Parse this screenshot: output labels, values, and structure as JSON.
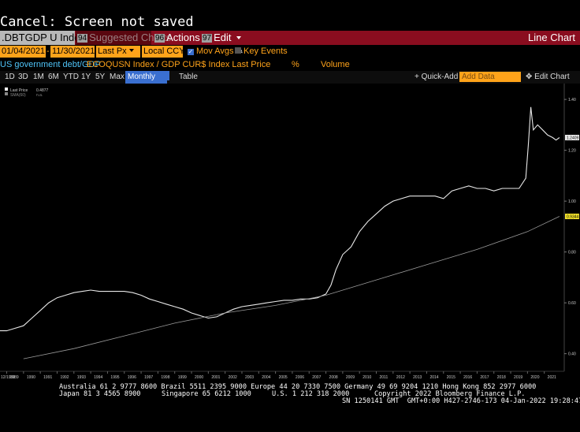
{
  "status": "Cancel: Screen not saved",
  "toolbar": {
    "ticker": ".DBTGDP U Index",
    "suggested": "Suggested Charts",
    "suggested_num": "94",
    "actions_num": "96",
    "actions": "Actions",
    "edit_num": "97",
    "edit": "Edit",
    "chart_type": "Line Chart"
  },
  "controls": {
    "start_date": "01/04/2021",
    "end_date": "11/30/2021",
    "price_field": "Last Px",
    "currency": "Local CCY",
    "mov_avgs": "Mov Avgs",
    "key_events": "Key Events"
  },
  "series_bar": {
    "name": "US government debt/GDP",
    "formula": "ECOQUSN Index / GDP CUR$ Index Last Price",
    "pct": "%",
    "volume": "Volume"
  },
  "tabs": {
    "d1": "1D",
    "d3": "3D",
    "m1": "1M",
    "m6": "6M",
    "ytd": "YTD",
    "y1": "1Y",
    "y5": "5Y",
    "max": "Max",
    "monthly": "Monthly",
    "table": "Table",
    "quick_add": "Quick-Add",
    "add_data": "Add Data",
    "edit_chart": "Edit Chart"
  },
  "legend": {
    "last_price_label": "Last Price",
    "last_price_value": "0.4877",
    "sma_label": "SMA(60)",
    "sma_value": "n.a."
  },
  "colors": {
    "toolbar_red": "#8a0d1f",
    "orange": "#ffa31a",
    "accent_blue": "#3a6fd0",
    "line": "#e8e8e8",
    "sma": "#9a9a9a"
  },
  "chart_data": {
    "type": "line",
    "x_ticks": [
      "1989",
      "1990",
      "1991",
      "1992",
      "1993",
      "1994",
      "1995",
      "1996",
      "1997",
      "1998",
      "1999",
      "2000",
      "2001",
      "2002",
      "2003",
      "2004",
      "2005",
      "2006",
      "2007",
      "2008",
      "2009",
      "2010",
      "2011",
      "2012",
      "2013",
      "2014",
      "2015",
      "2016",
      "2017",
      "2018",
      "2019",
      "2020",
      "2021"
    ],
    "x_start_label": "12/1988",
    "y_ticks": [
      "0.40",
      "0.60",
      "0.80",
      "1.00",
      "1.20",
      "1.40"
    ],
    "xlim": [
      1988.6,
      2022.0
    ],
    "ylim": [
      0.34,
      1.45
    ],
    "current_price_label": "1.2409",
    "sma_label": "0.9344",
    "series": [
      {
        "role": "price",
        "values": [
          [
            1988.6,
            0.49
          ],
          [
            1989,
            0.49
          ],
          [
            1989.5,
            0.5
          ],
          [
            1990,
            0.51
          ],
          [
            1990.5,
            0.54
          ],
          [
            1991,
            0.57
          ],
          [
            1991.5,
            0.6
          ],
          [
            1992,
            0.62
          ],
          [
            1992.5,
            0.63
          ],
          [
            1993,
            0.64
          ],
          [
            1993.5,
            0.645
          ],
          [
            1994,
            0.65
          ],
          [
            1994.5,
            0.645
          ],
          [
            1995,
            0.645
          ],
          [
            1995.5,
            0.645
          ],
          [
            1996,
            0.645
          ],
          [
            1996.5,
            0.64
          ],
          [
            1997,
            0.63
          ],
          [
            1997.5,
            0.615
          ],
          [
            1998,
            0.605
          ],
          [
            1998.5,
            0.595
          ],
          [
            1999,
            0.585
          ],
          [
            1999.5,
            0.575
          ],
          [
            2000,
            0.56
          ],
          [
            2000.5,
            0.55
          ],
          [
            2001,
            0.54
          ],
          [
            2001.5,
            0.545
          ],
          [
            2002,
            0.56
          ],
          [
            2002.5,
            0.575
          ],
          [
            2003,
            0.585
          ],
          [
            2003.5,
            0.59
          ],
          [
            2004,
            0.595
          ],
          [
            2004.5,
            0.6
          ],
          [
            2005,
            0.605
          ],
          [
            2005.5,
            0.61
          ],
          [
            2006,
            0.61
          ],
          [
            2006.5,
            0.615
          ],
          [
            2007,
            0.615
          ],
          [
            2007.5,
            0.62
          ],
          [
            2008,
            0.635
          ],
          [
            2008.3,
            0.67
          ],
          [
            2008.6,
            0.73
          ],
          [
            2009,
            0.79
          ],
          [
            2009.5,
            0.82
          ],
          [
            2010,
            0.88
          ],
          [
            2010.5,
            0.92
          ],
          [
            2011,
            0.95
          ],
          [
            2011.5,
            0.98
          ],
          [
            2012,
            1.0
          ],
          [
            2012.5,
            1.01
          ],
          [
            2013,
            1.02
          ],
          [
            2013.5,
            1.02
          ],
          [
            2014,
            1.02
          ],
          [
            2014.5,
            1.02
          ],
          [
            2015,
            1.01
          ],
          [
            2015.5,
            1.04
          ],
          [
            2016,
            1.05
          ],
          [
            2016.5,
            1.06
          ],
          [
            2017,
            1.05
          ],
          [
            2017.5,
            1.05
          ],
          [
            2018,
            1.04
          ],
          [
            2018.5,
            1.05
          ],
          [
            2019,
            1.05
          ],
          [
            2019.5,
            1.05
          ],
          [
            2019.9,
            1.09
          ],
          [
            2020.05,
            1.22
          ],
          [
            2020.2,
            1.37
          ],
          [
            2020.35,
            1.28
          ],
          [
            2020.6,
            1.3
          ],
          [
            2020.9,
            1.28
          ],
          [
            2021.2,
            1.26
          ],
          [
            2021.5,
            1.25
          ],
          [
            2021.7,
            1.24
          ],
          [
            2021.9,
            1.25
          ]
        ]
      },
      {
        "role": "sma",
        "values": [
          [
            1990,
            0.38
          ],
          [
            1993,
            0.42
          ],
          [
            1996,
            0.47
          ],
          [
            1999,
            0.52
          ],
          [
            2002,
            0.56
          ],
          [
            2005,
            0.59
          ],
          [
            2008,
            0.63
          ],
          [
            2011,
            0.69
          ],
          [
            2014,
            0.75
          ],
          [
            2017,
            0.81
          ],
          [
            2020,
            0.88
          ],
          [
            2021.9,
            0.94
          ]
        ]
      }
    ]
  },
  "footer": {
    "line1": "Australia 61 2 9777 8600 Brazil 5511 2395 9000 Europe 44 20 7330 7500 Germany 49 69 9204 1210 Hong Kong 852 2977 6000",
    "line2a": "Japan 81 3 4565 8900",
    "line2b": "Singapore 65 6212 1000",
    "line2c": "U.S. 1 212 318 2000",
    "line2d": "Copyright 2022 Bloomberg Finance L.P.",
    "line3": "SN 1250141 GMT  GMT+0:00 H427-2746-173 04-Jan-2022 19:28:47"
  }
}
